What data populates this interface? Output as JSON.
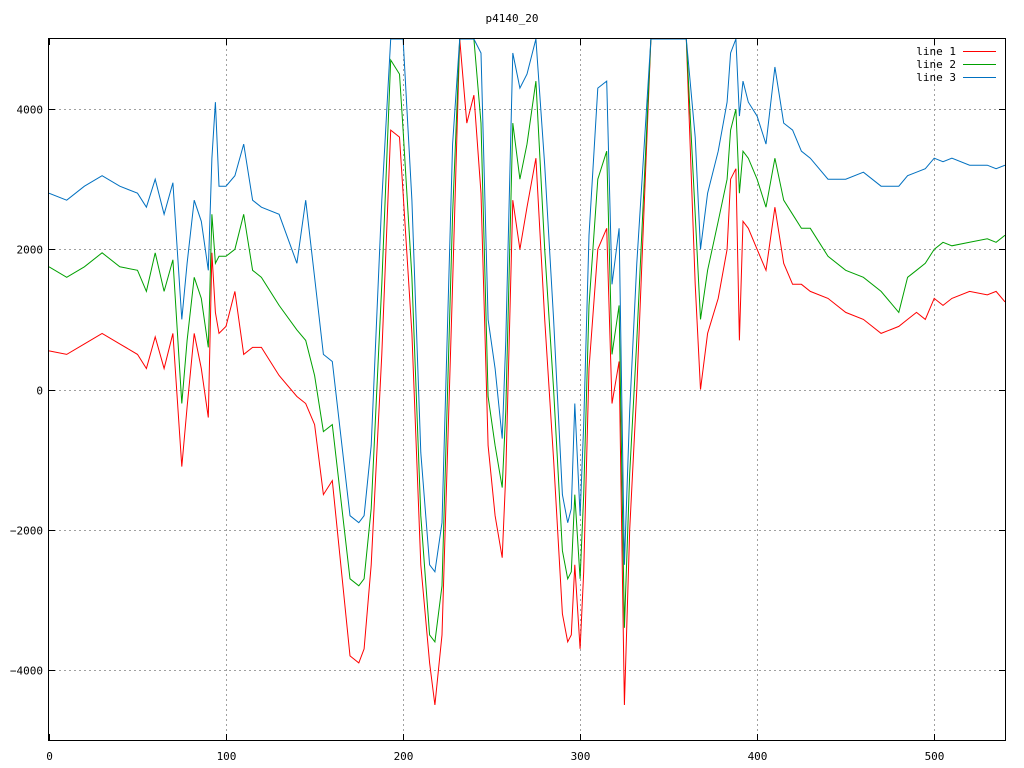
{
  "chart_data": {
    "type": "line",
    "title": "p4140_20",
    "xlabel": "",
    "ylabel": "",
    "xlim": [
      0,
      540
    ],
    "ylim": [
      -5000,
      5000
    ],
    "grid": true,
    "legend_position": "top-right",
    "x_ticks": [
      0,
      100,
      200,
      300,
      400,
      500
    ],
    "y_ticks": [
      -4000,
      -2000,
      0,
      2000,
      4000
    ],
    "x_tick_labels": [
      "0",
      "100",
      "200",
      "300",
      "400",
      "500"
    ],
    "y_tick_labels": [
      "−4000",
      "−2000",
      "0",
      "2000",
      "4000"
    ],
    "x": [
      0,
      10,
      20,
      30,
      40,
      50,
      55,
      60,
      65,
      70,
      75,
      78,
      82,
      86,
      90,
      92,
      94,
      96,
      100,
      105,
      110,
      115,
      120,
      130,
      140,
      145,
      150,
      155,
      160,
      170,
      175,
      178,
      182,
      188,
      193,
      198,
      200,
      205,
      210,
      215,
      218,
      222,
      228,
      232,
      236,
      240,
      244,
      248,
      252,
      256,
      258,
      262,
      266,
      270,
      275,
      280,
      285,
      290,
      293,
      295,
      297,
      300,
      302,
      305,
      310,
      315,
      318,
      322,
      325,
      328,
      332,
      340,
      350,
      360,
      365,
      368,
      372,
      378,
      383,
      385,
      388,
      390,
      392,
      395,
      400,
      405,
      410,
      415,
      420,
      425,
      430,
      440,
      450,
      460,
      470,
      480,
      485,
      490,
      495,
      500,
      505,
      510,
      520,
      530,
      535,
      540
    ],
    "series": [
      {
        "name": "line 1",
        "color": "#ff0000",
        "values": [
          550,
          500,
          650,
          800,
          650,
          500,
          300,
          750,
          300,
          800,
          -1100,
          -250,
          800,
          300,
          -400,
          1950,
          1100,
          800,
          900,
          1400,
          500,
          600,
          600,
          200,
          -100,
          -200,
          -500,
          -1500,
          -1300,
          -3800,
          -3900,
          -3700,
          -2500,
          500,
          3700,
          3600,
          2800,
          800,
          -2500,
          -3900,
          -4500,
          -3500,
          1500,
          5000,
          3800,
          4200,
          2800,
          -800,
          -1800,
          -2400,
          -1200,
          2700,
          2000,
          2600,
          3300,
          1000,
          -1000,
          -3200,
          -3600,
          -3500,
          -2500,
          -3700,
          -2600,
          300,
          2000,
          2300,
          -200,
          400,
          -4500,
          -2000,
          0,
          5000,
          5000,
          5000,
          1500,
          0,
          800,
          1300,
          2000,
          3000,
          3150,
          700,
          2400,
          2300,
          2000,
          1700,
          2600,
          1800,
          1500,
          1500,
          1400,
          1300,
          1100,
          1000,
          800,
          900,
          1000,
          1100,
          1000,
          1300,
          1200,
          1300,
          1400,
          1350,
          1400,
          1250
        ]
      },
      {
        "name": "line 2",
        "color": "#00a000",
        "values": [
          1750,
          1600,
          1750,
          1950,
          1750,
          1700,
          1400,
          1950,
          1400,
          1850,
          -200,
          700,
          1600,
          1300,
          600,
          2500,
          1800,
          1900,
          1900,
          2000,
          2500,
          1700,
          1600,
          1200,
          850,
          700,
          200,
          -600,
          -500,
          -2700,
          -2800,
          -2700,
          -1700,
          1500,
          4700,
          4500,
          3700,
          1600,
          -1800,
          -3500,
          -3600,
          -2800,
          2500,
          5000,
          5000,
          5000,
          3800,
          -100,
          -800,
          -1400,
          -300,
          3800,
          3000,
          3500,
          4400,
          2000,
          0,
          -2300,
          -2700,
          -2600,
          -1500,
          -2700,
          -1500,
          1200,
          3000,
          3400,
          500,
          1200,
          -3400,
          -1200,
          700,
          5000,
          5000,
          5000,
          2500,
          1000,
          1700,
          2400,
          3000,
          3700,
          4000,
          2800,
          3400,
          3300,
          3000,
          2600,
          3300,
          2700,
          2500,
          2300,
          2300,
          1900,
          1700,
          1600,
          1400,
          1100,
          1600,
          1700,
          1800,
          2000,
          2100,
          2050,
          2100,
          2150,
          2100,
          2200
        ]
      },
      {
        "name": "line 3",
        "color": "#0070c0",
        "values": [
          2800,
          2700,
          2900,
          3050,
          2900,
          2800,
          2600,
          3000,
          2500,
          2950,
          1000,
          1800,
          2700,
          2400,
          1700,
          3300,
          4100,
          2900,
          2900,
          3050,
          3500,
          2700,
          2600,
          2500,
          1800,
          2700,
          1600,
          500,
          400,
          -1800,
          -1900,
          -1800,
          -800,
          2700,
          5000,
          5000,
          5000,
          2700,
          -900,
          -2500,
          -2600,
          -1900,
          3500,
          5000,
          5000,
          5000,
          4800,
          1000,
          300,
          -700,
          700,
          4800,
          4300,
          4500,
          5000,
          3200,
          1000,
          -1500,
          -1900,
          -1700,
          -200,
          -1800,
          -500,
          2200,
          4300,
          4400,
          1500,
          2300,
          -2500,
          -300,
          1800,
          5000,
          5000,
          5000,
          3600,
          2000,
          2800,
          3400,
          4100,
          4800,
          5000,
          3900,
          4400,
          4100,
          3900,
          3500,
          4600,
          3800,
          3700,
          3400,
          3300,
          3000,
          3000,
          3100,
          2900,
          2900,
          3050,
          3100,
          3150,
          3300,
          3250,
          3300,
          3200,
          3200,
          3150,
          3200
        ]
      }
    ]
  }
}
